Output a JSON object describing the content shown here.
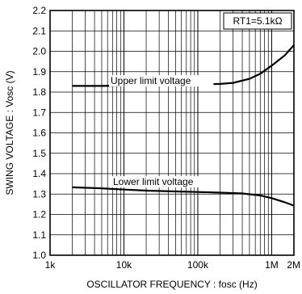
{
  "chart_data": {
    "type": "line",
    "xlabel": "OSCILLATOR  FREQUENCY : fosc  (Hz)",
    "ylabel": "SWING VOLTAGE : Vosc  (V)",
    "x_scale": "log",
    "xlim": [
      1000,
      2000000
    ],
    "ylim": [
      1.0,
      2.2
    ],
    "grid": true,
    "x_ticks": [
      {
        "value": 1000,
        "label": "1k"
      },
      {
        "value": 10000,
        "label": "10k"
      },
      {
        "value": 100000,
        "label": "100k"
      },
      {
        "value": 1000000,
        "label": "1M"
      },
      {
        "value": 2000000,
        "label": "2M"
      }
    ],
    "y_ticks": [
      {
        "value": 1.0,
        "label": "1.0"
      },
      {
        "value": 1.1,
        "label": "1.1"
      },
      {
        "value": 1.2,
        "label": "1.2"
      },
      {
        "value": 1.3,
        "label": "1.3"
      },
      {
        "value": 1.4,
        "label": "1.4"
      },
      {
        "value": 1.5,
        "label": "1.5"
      },
      {
        "value": 1.6,
        "label": "1.6"
      },
      {
        "value": 1.7,
        "label": "1.7"
      },
      {
        "value": 1.8,
        "label": "1.8"
      },
      {
        "value": 1.9,
        "label": "1.9"
      },
      {
        "value": 2.0,
        "label": "2.0"
      },
      {
        "value": 2.1,
        "label": "2.1"
      },
      {
        "value": 2.2,
        "label": "2.2"
      }
    ],
    "legend_box": "RT1=5.1kΩ",
    "series": [
      {
        "name": "Upper limit voltage",
        "x": [
          2000,
          5000,
          10000,
          20000,
          50000,
          100000,
          200000,
          300000,
          500000,
          700000,
          1000000,
          1500000,
          2000000
        ],
        "y": [
          1.83,
          1.83,
          1.832,
          1.833,
          1.835,
          1.837,
          1.84,
          1.845,
          1.865,
          1.89,
          1.93,
          1.98,
          2.03
        ]
      },
      {
        "name": "Lower limit voltage",
        "x": [
          2000,
          5000,
          10000,
          20000,
          50000,
          100000,
          200000,
          400000,
          700000,
          1000000,
          1500000,
          2000000
        ],
        "y": [
          1.333,
          1.328,
          1.322,
          1.317,
          1.313,
          1.31,
          1.307,
          1.303,
          1.293,
          1.28,
          1.26,
          1.243
        ]
      }
    ]
  }
}
